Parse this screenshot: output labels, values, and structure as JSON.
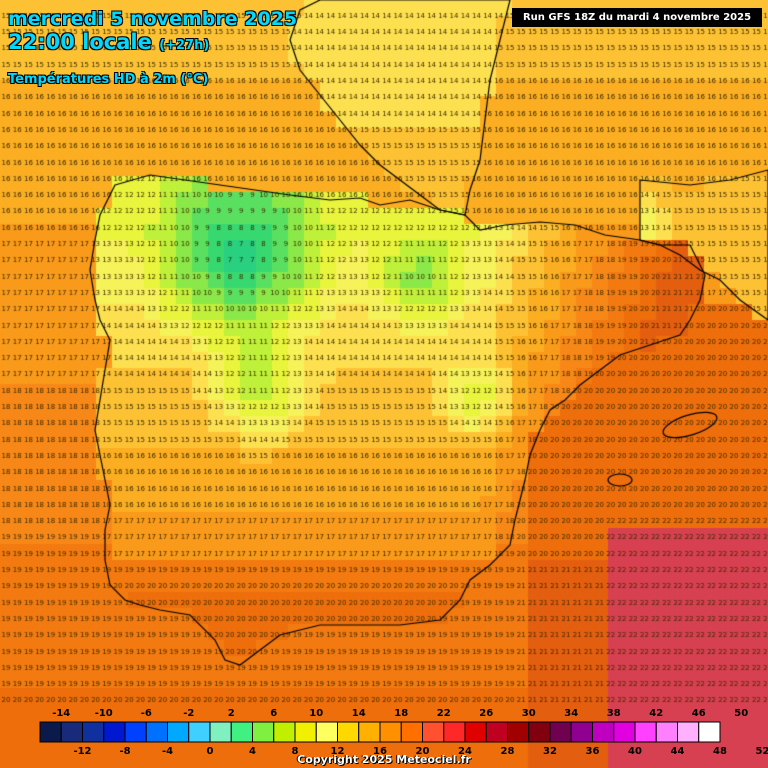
{
  "header": {
    "date": "mercredi 5 novembre 2025",
    "time": "22:00 locale",
    "offset": "(+27h)",
    "field": "Températures HD à 2m (°C)",
    "run": "Run GFS 18Z du mardi 4 novembre 2025"
  },
  "legend": {
    "upper_labels": [
      "-14",
      "-10",
      "-6",
      "-2",
      "2",
      "6",
      "10",
      "14",
      "18",
      "22",
      "26",
      "30",
      "34",
      "38",
      "42",
      "46",
      "50"
    ],
    "lower_labels": [
      "-12",
      "-8",
      "-4",
      "0",
      "4",
      "8",
      "12",
      "16",
      "20",
      "24",
      "28",
      "32",
      "36",
      "40",
      "44",
      "48",
      "52"
    ],
    "colors": [
      "#0a1a4a",
      "#1a2a7a",
      "#1030a0",
      "#0018d0",
      "#0040ff",
      "#0070ff",
      "#00a8ff",
      "#40d0ff",
      "#80f0c0",
      "#40f080",
      "#80f040",
      "#c0f000",
      "#f0f000",
      "#ffff60",
      "#ffd800",
      "#ffb000",
      "#ff9000",
      "#ff7000",
      "#ff5030",
      "#ff2828",
      "#e00000",
      "#c00020",
      "#a00000",
      "#800010",
      "#700050",
      "#900090",
      "#c000c0",
      "#e000e0",
      "#ff40ff",
      "#ff80ff",
      "#ffb0ff",
      "#ffffff"
    ]
  },
  "map_values": {
    "description_free": true,
    "palette": {
      "9": "#5ae060",
      "10": "#8ae848",
      "11": "#bff03a",
      "12": "#e8f53c",
      "13": "#f5f25a",
      "14": "#fde050",
      "15": "#fcc234",
      "16": "#fbae22",
      "17": "#f99a1a",
      "18": "#f78818",
      "19": "#f27a10",
      "20": "#ee6e0c",
      "21": "#e45e10",
      "22": "#d64050",
      "8": "#38d870",
      "7": "#28d080",
      "5": "#20c890",
      "4": "#20c0a0"
    }
  },
  "copyright": "Copyright 2025 Meteociel.fr"
}
